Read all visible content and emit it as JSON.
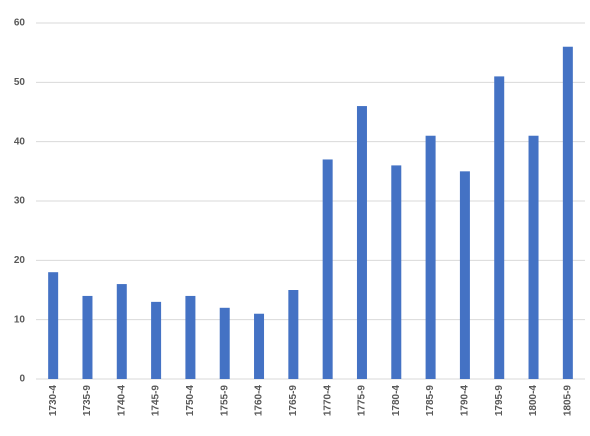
{
  "chart_data": {
    "type": "bar",
    "categories": [
      "1730-4",
      "1735-9",
      "1740-4",
      "1745-9",
      "1750-4",
      "1755-9",
      "1760-4",
      "1765-9",
      "1770-4",
      "1775-9",
      "1780-4",
      "1785-9",
      "1790-4",
      "1795-9",
      "1800-4",
      "1805-9"
    ],
    "values": [
      18,
      14,
      16,
      13,
      14,
      12,
      11,
      15,
      37,
      46,
      36,
      41,
      35,
      51,
      41,
      56
    ],
    "color": "#4472c4",
    "ylim": [
      0,
      60
    ],
    "yticks": [
      0,
      10,
      20,
      30,
      40,
      50,
      60
    ],
    "grid": true
  }
}
